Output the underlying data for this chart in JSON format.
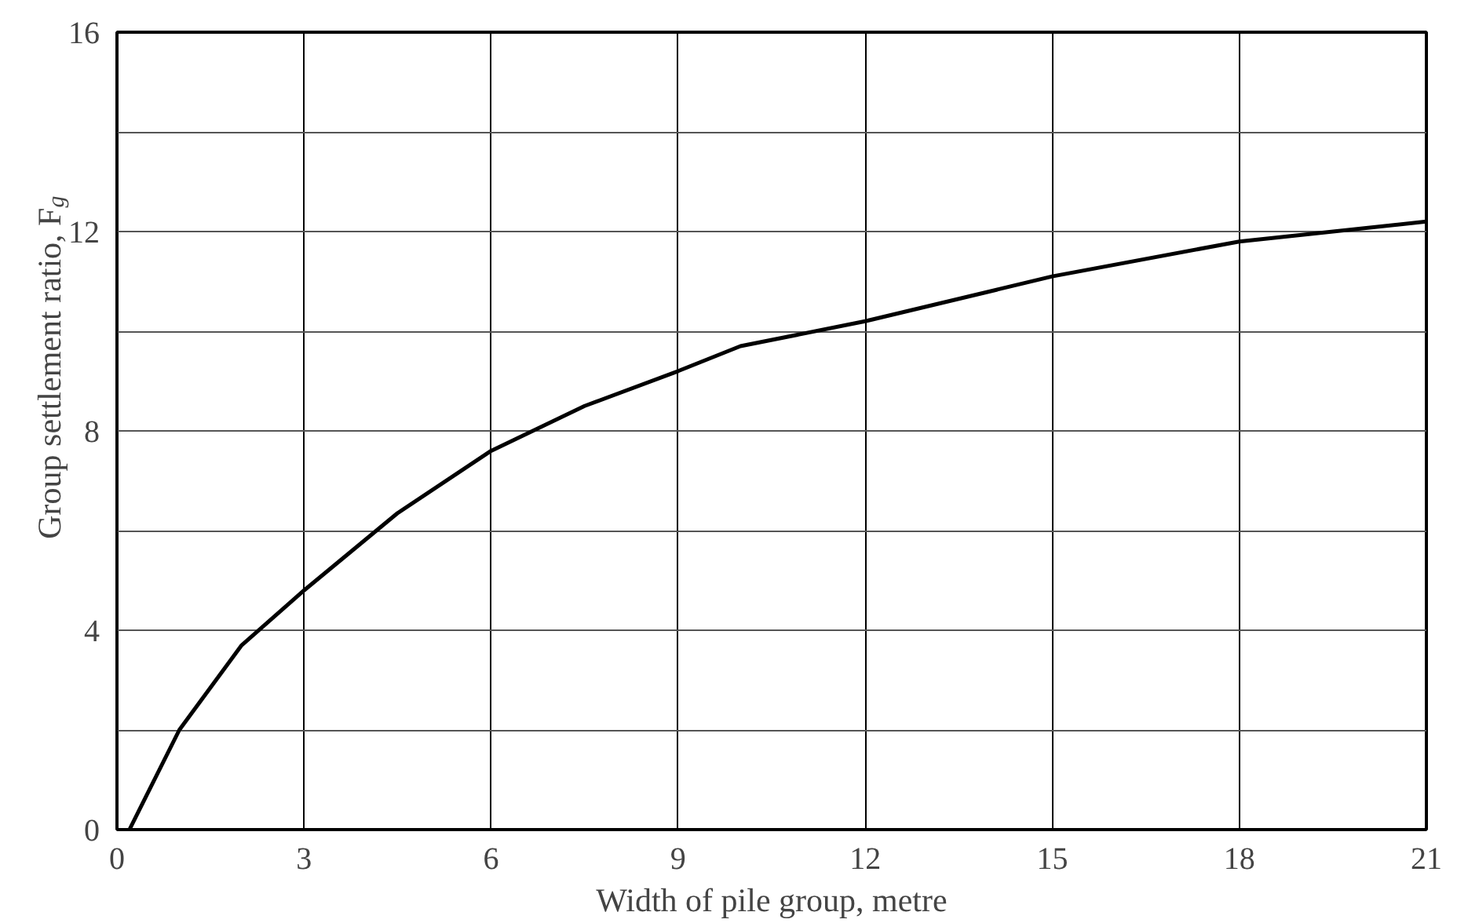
{
  "chart_data": {
    "type": "line",
    "xlabel": "Width of pile group, metre",
    "ylabel": "Group settlement ratio, F$_{g}$",
    "x": [
      0.2,
      1,
      2,
      3,
      4.5,
      6,
      7.5,
      9,
      10,
      12,
      15,
      18,
      21
    ],
    "values": [
      0,
      2.0,
      3.7,
      4.8,
      6.35,
      7.6,
      8.5,
      9.2,
      9.7,
      10.2,
      11.1,
      11.8,
      12.2
    ],
    "color": "#000000",
    "xlim": [
      0,
      21
    ],
    "ylim": [
      0,
      16
    ],
    "xticks": [
      0,
      3,
      6,
      9,
      12,
      15,
      18,
      21
    ],
    "yticks": [
      0,
      {
        "value": 2,
        "label": null
      },
      4,
      {
        "value": 6,
        "label": null
      },
      8,
      {
        "value": 10,
        "label": null
      },
      12,
      {
        "value": 14,
        "label": null
      },
      16
    ],
    "grid": true,
    "line_style": "solid"
  }
}
